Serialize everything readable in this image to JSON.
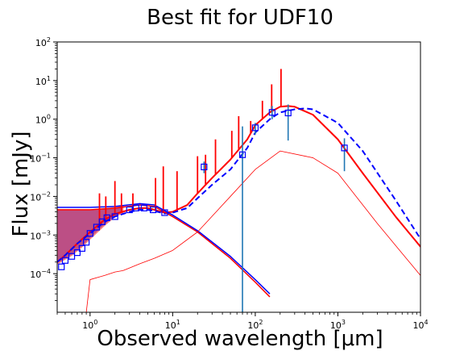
{
  "chart_data": {
    "type": "line",
    "title": "Best fit for UDF10",
    "xlabel": "Observed wavelength [μm]",
    "ylabel": "Flux [mJy]",
    "xscale": "log",
    "yscale": "log",
    "xlim": [
      0.4,
      10000
    ],
    "ylim": [
      1e-05,
      100
    ],
    "grid": false,
    "x_ticks": [
      {
        "value": 1,
        "base": "10",
        "exp": "0"
      },
      {
        "value": 10,
        "base": "10",
        "exp": "1"
      },
      {
        "value": 100,
        "base": "10",
        "exp": "2"
      },
      {
        "value": 1000,
        "base": "10",
        "exp": "3"
      },
      {
        "value": 10000,
        "base": "10",
        "exp": "4"
      }
    ],
    "y_ticks": [
      {
        "value": 0.0001,
        "base": "10",
        "exp": "−4"
      },
      {
        "value": 0.001,
        "base": "10",
        "exp": "−3"
      },
      {
        "value": 0.01,
        "base": "10",
        "exp": "−2"
      },
      {
        "value": 0.1,
        "base": "10",
        "exp": "−1"
      },
      {
        "value": 1,
        "base": "10",
        "exp": "0"
      },
      {
        "value": 10,
        "base": "10",
        "exp": "1"
      },
      {
        "value": 100,
        "base": "10",
        "exp": "2"
      }
    ],
    "colors": {
      "model": "#ff0000",
      "model_attenuated_fill": "#b03070",
      "model_fill_edge": "#ff8080",
      "observed": "#0000ff",
      "purple": "#7a2aa8",
      "errorbars": "#1f77b4",
      "dust_thin": "#ff0000"
    },
    "series": [
      {
        "key": "best_fit_model",
        "style": "solid",
        "x": [
          0.4,
          0.5,
          0.7,
          1.0,
          1.5,
          2.0,
          3.0,
          4.0,
          5.0,
          6.0,
          8.0,
          10,
          15,
          20,
          30,
          50,
          80,
          100,
          150,
          200,
          250,
          300,
          500,
          1000,
          2000,
          5000,
          10000
        ],
        "y": [
          0.0002,
          0.0003,
          0.0006,
          0.0012,
          0.0025,
          0.0035,
          0.0045,
          0.005,
          0.005,
          0.0045,
          0.0038,
          0.004,
          0.006,
          0.012,
          0.03,
          0.09,
          0.3,
          0.7,
          1.5,
          2.1,
          2.2,
          2.1,
          1.3,
          0.3,
          0.04,
          0.003,
          0.0005
        ]
      },
      {
        "key": "observed_model",
        "style": "dashed",
        "x": [
          0.4,
          0.5,
          0.7,
          1.0,
          1.5,
          2.0,
          3.0,
          4.0,
          5.0,
          6.0,
          8.0,
          10,
          15,
          20,
          30,
          50,
          80,
          100,
          150,
          200,
          300,
          400,
          500,
          1000,
          2000,
          5000,
          10000
        ],
        "y": [
          0.0002,
          0.0003,
          0.0006,
          0.0011,
          0.0022,
          0.003,
          0.004,
          0.0045,
          0.0045,
          0.0042,
          0.0036,
          0.0038,
          0.005,
          0.009,
          0.02,
          0.05,
          0.18,
          0.45,
          1.0,
          1.5,
          1.8,
          1.9,
          1.8,
          0.8,
          0.15,
          0.008,
          0.0008
        ]
      },
      {
        "key": "stellar_unattenuated_red",
        "style": "solid",
        "x": [
          0.4,
          0.6,
          1.0,
          2.0,
          4.0,
          6.0,
          10,
          20,
          50,
          100,
          150
        ],
        "y": [
          0.0045,
          0.0045,
          0.0045,
          0.005,
          0.006,
          0.0055,
          0.003,
          0.0012,
          0.00025,
          6e-05,
          2.5e-05
        ]
      },
      {
        "key": "stellar_unattenuated_blue",
        "style": "solid",
        "x": [
          0.4,
          0.6,
          1.0,
          2.0,
          4.0,
          6.0,
          10,
          20,
          50,
          100,
          150
        ],
        "y": [
          0.0052,
          0.0052,
          0.0052,
          0.0055,
          0.0065,
          0.006,
          0.0033,
          0.0013,
          0.00028,
          7e-05,
          3e-05
        ]
      },
      {
        "key": "dust_thin_red",
        "style": "solid",
        "x": [
          0.9,
          1.0,
          1.5,
          2.0,
          2.5,
          3.0,
          4.0,
          6.0,
          10,
          20,
          50,
          100,
          200,
          500,
          1000,
          3000,
          10000
        ],
        "y": [
          1e-05,
          7e-05,
          9e-05,
          0.00011,
          0.00012,
          0.00014,
          0.00018,
          0.00025,
          0.0004,
          0.0012,
          0.01,
          0.05,
          0.15,
          0.1,
          0.04,
          0.002,
          9e-05
        ]
      }
    ],
    "shaded_region": {
      "x": [
        0.4,
        0.6,
        0.8,
        1.0,
        1.5,
        2.0,
        2.5
      ],
      "upper": [
        0.0045,
        0.0045,
        0.0045,
        0.0045,
        0.0048,
        0.005,
        0.0055
      ],
      "lower": [
        0.00018,
        0.0003,
        0.0005,
        0.0008,
        0.0018,
        0.003,
        0.0038
      ]
    },
    "observations": {
      "x": [
        0.45,
        0.5,
        0.6,
        0.7,
        0.8,
        0.9,
        1.0,
        1.2,
        1.4,
        1.6,
        2.0,
        3.0,
        3.6,
        4.5,
        5.8,
        8.0,
        24,
        70,
        100,
        160,
        250,
        1200
      ],
      "y": [
        0.00015,
        0.00022,
        0.00028,
        0.00035,
        0.00045,
        0.00065,
        0.0011,
        0.0016,
        0.0022,
        0.0028,
        0.003,
        0.0045,
        0.005,
        0.005,
        0.0045,
        0.0038,
        0.058,
        0.12,
        0.6,
        1.5,
        1.45,
        0.18
      ],
      "err_low": [
        null,
        null,
        null,
        null,
        null,
        null,
        null,
        null,
        null,
        null,
        null,
        null,
        null,
        null,
        null,
        null,
        0.04,
        1e-05,
        0.4,
        1.0,
        0.28,
        0.045
      ],
      "err_high": [
        null,
        null,
        null,
        null,
        null,
        null,
        null,
        null,
        null,
        null,
        null,
        null,
        null,
        null,
        null,
        null,
        0.08,
        0.65,
        0.8,
        2.2,
        2.4,
        0.32
      ]
    },
    "emission_lines": [
      {
        "x": 1.3,
        "y": 0.012
      },
      {
        "x": 1.55,
        "y": 0.01
      },
      {
        "x": 2.0,
        "y": 0.025
      },
      {
        "x": 2.4,
        "y": 0.012
      },
      {
        "x": 3.3,
        "y": 0.012
      },
      {
        "x": 6.2,
        "y": 0.03
      },
      {
        "x": 7.7,
        "y": 0.06
      },
      {
        "x": 11.3,
        "y": 0.045
      },
      {
        "x": 20,
        "y": 0.11
      },
      {
        "x": 25,
        "y": 0.12
      },
      {
        "x": 33,
        "y": 0.3
      },
      {
        "x": 52,
        "y": 0.5
      },
      {
        "x": 63,
        "y": 1.2
      },
      {
        "x": 88,
        "y": 0.9
      },
      {
        "x": 122,
        "y": 3.0
      },
      {
        "x": 158,
        "y": 8.0
      },
      {
        "x": 205,
        "y": 20
      }
    ]
  }
}
